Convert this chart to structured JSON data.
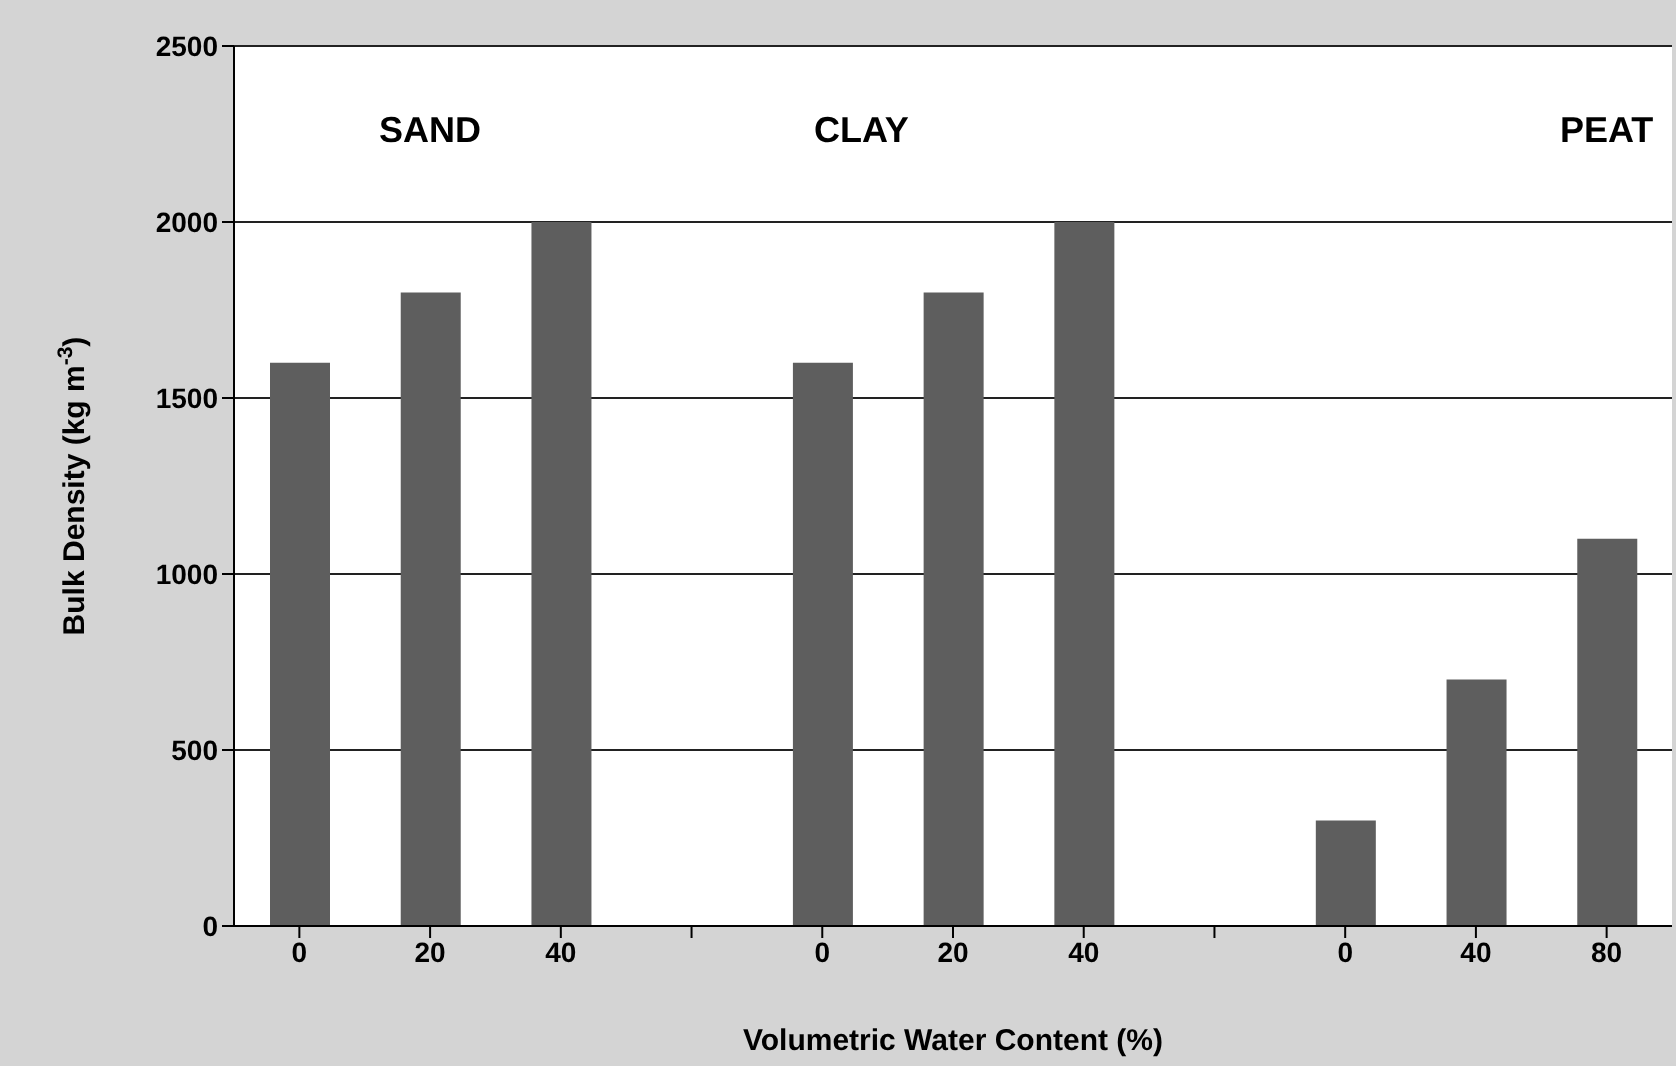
{
  "chart_data": {
    "type": "bar",
    "xlabel": "Volumetric Water Content (%)",
    "ylabel": "Bulk Density (kg m$^{-3}$)",
    "categories": [
      "0",
      "20",
      "40",
      null,
      "0",
      "20",
      "40",
      null,
      "0",
      "40",
      "80"
    ],
    "values": [
      1600,
      1800,
      2000,
      null,
      1600,
      1800,
      2000,
      null,
      300,
      700,
      1100
    ],
    "color": "#5e5e5e",
    "ylim": [
      0,
      2500
    ],
    "yticks": [
      0,
      500,
      1000,
      1500,
      2000,
      2500
    ],
    "grid": "y",
    "annotations": [
      "SAND",
      "CLAY",
      "PEAT"
    ]
  }
}
